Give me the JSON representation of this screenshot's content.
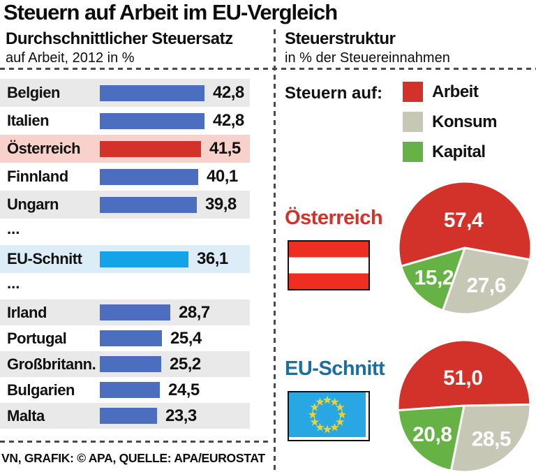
{
  "title": "Steuern auf Arbeit im EU-Vergleich",
  "footer": "VN, GRAFIK: © APA, QUELLE: APA/EUROSTAT",
  "left_panel": {
    "heading": "Durchschnittlicher Steuersatz",
    "subheading": "auf Arbeit, 2012 in %"
  },
  "right_panel": {
    "heading": "Steuerstruktur",
    "subheading": "in % der Steuereinnahmen",
    "legend_title": "Steuern auf:",
    "legend": [
      {
        "label": "Arbeit",
        "color": "#d23229"
      },
      {
        "label": "Konsum",
        "color": "#c6c7b4"
      },
      {
        "label": "Kapital",
        "color": "#67b244"
      }
    ]
  },
  "colors": {
    "bar_blue": "#4b6fbe",
    "bar_red": "#d23229",
    "bar_cyan": "#12a3e8",
    "row_gray": "#e9e9e9",
    "row_white": "#ffffff",
    "row_pink": "#f8d2ca",
    "row_lightblue": "#dcedf8",
    "pie_red": "#d23229",
    "pie_gray": "#c6c7b4",
    "pie_green": "#67b244",
    "austria_text": "#d23229",
    "eu_text": "#1b6f9e",
    "flag_red": "#ee2e22",
    "eu_flag_blue": "#29a7e3",
    "eu_star_yellow": "#e9d437",
    "divider": "#4a4a4a"
  },
  "chart_data": [
    {
      "type": "bar",
      "title": "Durchschnittlicher Steuersatz auf Arbeit, 2012 in %",
      "unit": "% ",
      "axis_max": 42.8,
      "rows": [
        {
          "label": "Belgien",
          "value": 42.8,
          "display": "42,8",
          "style": "normal",
          "bg": "gray"
        },
        {
          "label": "Italien",
          "value": 42.8,
          "display": "42,8",
          "style": "normal",
          "bg": "white"
        },
        {
          "label": "Österreich",
          "value": 41.5,
          "display": "41,5",
          "style": "highlight",
          "bg": "pink"
        },
        {
          "label": "Finnland",
          "value": 40.1,
          "display": "40,1",
          "style": "normal",
          "bg": "white"
        },
        {
          "label": "Ungarn",
          "value": 39.8,
          "display": "39,8",
          "style": "normal",
          "bg": "gray"
        },
        {
          "label": "...",
          "style": "ellipsis",
          "bg": "white"
        },
        {
          "label": "EU-Schnitt",
          "value": 36.1,
          "display": "36,1",
          "style": "eu",
          "bg": "lightblue"
        },
        {
          "label": "...",
          "style": "ellipsis",
          "bg": "white"
        },
        {
          "label": "Irland",
          "value": 28.7,
          "display": "28,7",
          "style": "normal",
          "bg": "gray"
        },
        {
          "label": "Portugal",
          "value": 25.4,
          "display": "25,4",
          "style": "normal",
          "bg": "white"
        },
        {
          "label": "Großbritann.",
          "value": 25.2,
          "display": "25,2",
          "style": "normal",
          "bg": "gray"
        },
        {
          "label": "Bulgarien",
          "value": 24.5,
          "display": "24,5",
          "style": "normal",
          "bg": "white"
        },
        {
          "label": "Malta",
          "value": 23.3,
          "display": "23,3",
          "style": "normal",
          "bg": "gray"
        }
      ]
    },
    {
      "type": "pie",
      "label": "Österreich",
      "flag": "austria",
      "start_angle_deg": 254,
      "slices": [
        {
          "name": "Arbeit",
          "value": 57.4,
          "display": "57,4",
          "color": "#d23229"
        },
        {
          "name": "Konsum",
          "value": 27.6,
          "display": "27,6",
          "color": "#c6c7b4"
        },
        {
          "name": "Kapital",
          "value": 15.2,
          "display": "15,2",
          "color": "#67b244"
        }
      ]
    },
    {
      "type": "pie",
      "label": "EU-Schnitt",
      "flag": "eu",
      "start_angle_deg": 266,
      "slices": [
        {
          "name": "Arbeit",
          "value": 51.0,
          "display": "51,0",
          "color": "#d23229"
        },
        {
          "name": "Konsum",
          "value": 28.5,
          "display": "28,5",
          "color": "#c6c7b4"
        },
        {
          "name": "Kapital",
          "value": 20.8,
          "display": "20,8",
          "color": "#67b244"
        }
      ]
    }
  ]
}
